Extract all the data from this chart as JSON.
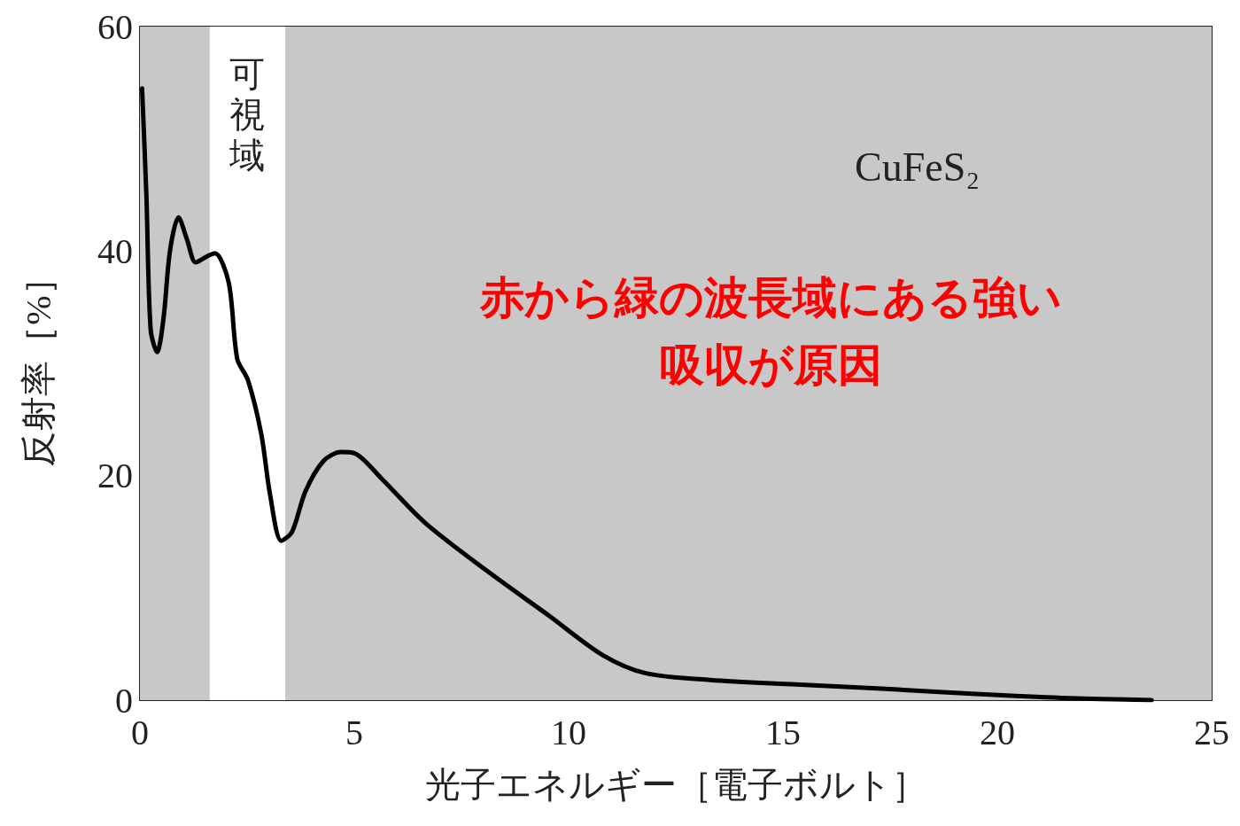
{
  "chart_data": {
    "type": "line",
    "xlabel": "光子エネルギー［電子ボルト］",
    "ylabel": "反射率［%］",
    "x": [
      0.05,
      0.15,
      0.25,
      0.4,
      0.55,
      0.7,
      0.9,
      1.1,
      1.3,
      1.55,
      1.75,
      2.07,
      2.27,
      2.52,
      2.83,
      3.04,
      3.3,
      3.55,
      3.86,
      4.28,
      4.69,
      5.0,
      5.62,
      6.65,
      8.1,
      9.55,
      10.8,
      11.8,
      13.3,
      15.3,
      17.4,
      19.5,
      21.5,
      23.6
    ],
    "series": [
      {
        "color": "#000000",
        "values": [
          54.5,
          45,
          33,
          31,
          34,
          40,
          43,
          41,
          39,
          39.5,
          39.8,
          37.2,
          30.4,
          28.5,
          23.7,
          18.2,
          14.2,
          15,
          18.6,
          21.3,
          22.1,
          22,
          19.8,
          15.8,
          11.5,
          7.5,
          4,
          2.4,
          1.8,
          1.4,
          1,
          0.55,
          0.2,
          0
        ]
      }
    ],
    "xlim": [
      0,
      25
    ],
    "ylim": [
      0,
      60
    ],
    "xticks": [
      0,
      5,
      10,
      15,
      20,
      25
    ],
    "yticks": [
      0,
      20,
      40,
      60
    ],
    "bands": [
      {
        "axis": "x",
        "from": 0,
        "to": 1.63,
        "color": "#c8c8c8"
      },
      {
        "axis": "x",
        "from": 1.63,
        "to": 3.39,
        "label": "可視域",
        "color": "#ffffff"
      },
      {
        "axis": "x",
        "from": 3.39,
        "to": 25,
        "color": "#c8c8c8"
      }
    ],
    "annotations": [
      "CuFeS₂",
      "赤から緑の波長域にある強い吸収が原因"
    ],
    "grid": false,
    "marker": "none",
    "line_style": "solid"
  }
}
